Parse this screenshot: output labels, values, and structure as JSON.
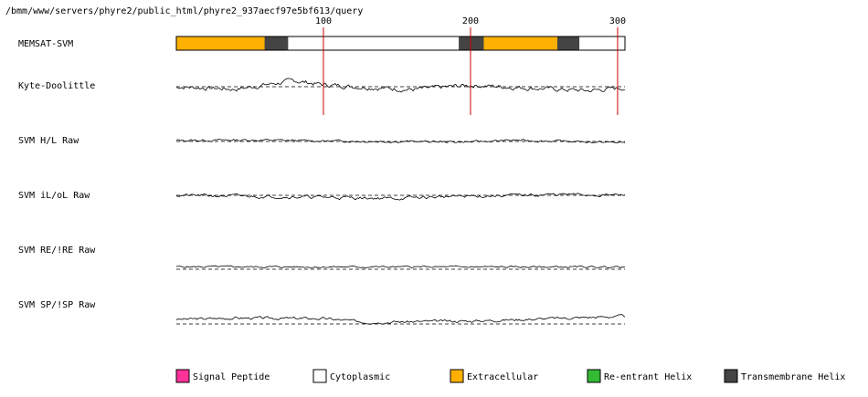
{
  "file_path": "/bmm/www/servers/phyre2/public_html/phyre2_937aecf97e5bf613/query",
  "chart_data": {
    "type": "line",
    "sequence_length": 305,
    "x_ticks": [
      100,
      200,
      300
    ],
    "x_tick_labels": [
      "100",
      "200",
      "300"
    ],
    "memsat": {
      "label": "MEMSAT-SVM",
      "segments": [
        {
          "start": 1,
          "end": 61,
          "class": "extracellular"
        },
        {
          "start": 61,
          "end": 77,
          "class": "transmembrane"
        },
        {
          "start": 77,
          "end": 193,
          "class": "cytoplasmic"
        },
        {
          "start": 193,
          "end": 210,
          "class": "transmembrane"
        },
        {
          "start": 210,
          "end": 260,
          "class": "extracellular"
        },
        {
          "start": 260,
          "end": 275,
          "class": "transmembrane"
        },
        {
          "start": 275,
          "end": 305,
          "class": "cytoplasmic"
        }
      ]
    },
    "tracks": [
      {
        "label": "Kyte-Doolittle",
        "amp": 10,
        "seed": 7,
        "bias": [
          [
            0,
            0.0
          ],
          [
            40,
            -0.5
          ],
          [
            80,
            1.2
          ],
          [
            100,
            0.4
          ],
          [
            160,
            -0.6
          ],
          [
            200,
            0.3
          ],
          [
            280,
            -0.8
          ],
          [
            305,
            -0.2
          ]
        ]
      },
      {
        "label": "SVM H/L Raw",
        "amp": 5,
        "seed": 13,
        "bias": [
          [
            0,
            0.4
          ],
          [
            50,
            0.6
          ],
          [
            100,
            0.2
          ],
          [
            200,
            -0.2
          ],
          [
            230,
            0.5
          ],
          [
            305,
            -0.5
          ]
        ]
      },
      {
        "label": "SVM iL/oL Raw",
        "amp": 7,
        "seed": 21,
        "bias": [
          [
            0,
            0.0
          ],
          [
            60,
            -0.3
          ],
          [
            110,
            -0.6
          ],
          [
            150,
            -0.9
          ],
          [
            180,
            -0.4
          ],
          [
            260,
            0.2
          ],
          [
            305,
            0.0
          ]
        ]
      },
      {
        "label": "SVM RE/!RE Raw",
        "amp": 4,
        "seed": 5,
        "bias": [
          [
            0,
            1.2
          ],
          [
            305,
            1.1
          ]
        ]
      },
      {
        "label": "SVM SP/!SP Raw",
        "amp": 6,
        "seed": 3,
        "bias": [
          [
            0,
            1.5
          ],
          [
            40,
            2.0
          ],
          [
            100,
            1.8
          ],
          [
            130,
            0.6
          ],
          [
            200,
            1.0
          ],
          [
            305,
            2.6
          ]
        ]
      }
    ],
    "legend": [
      {
        "label": "Signal Peptide",
        "color": "#ff3399"
      },
      {
        "label": "Cytoplasmic",
        "color": "#ffffff"
      },
      {
        "label": "Extracellular",
        "color": "#ffb000"
      },
      {
        "label": "Re-entrant Helix",
        "color": "#33bb33"
      },
      {
        "label": "Transmembrane Helix",
        "color": "#444444"
      }
    ],
    "class_colors": {
      "signal": "#ff3399",
      "cytoplasmic": "#ffffff",
      "extracellular": "#ffb000",
      "reentrant": "#33bb33",
      "transmembrane": "#444444"
    },
    "marker_color": "#cc0000"
  }
}
